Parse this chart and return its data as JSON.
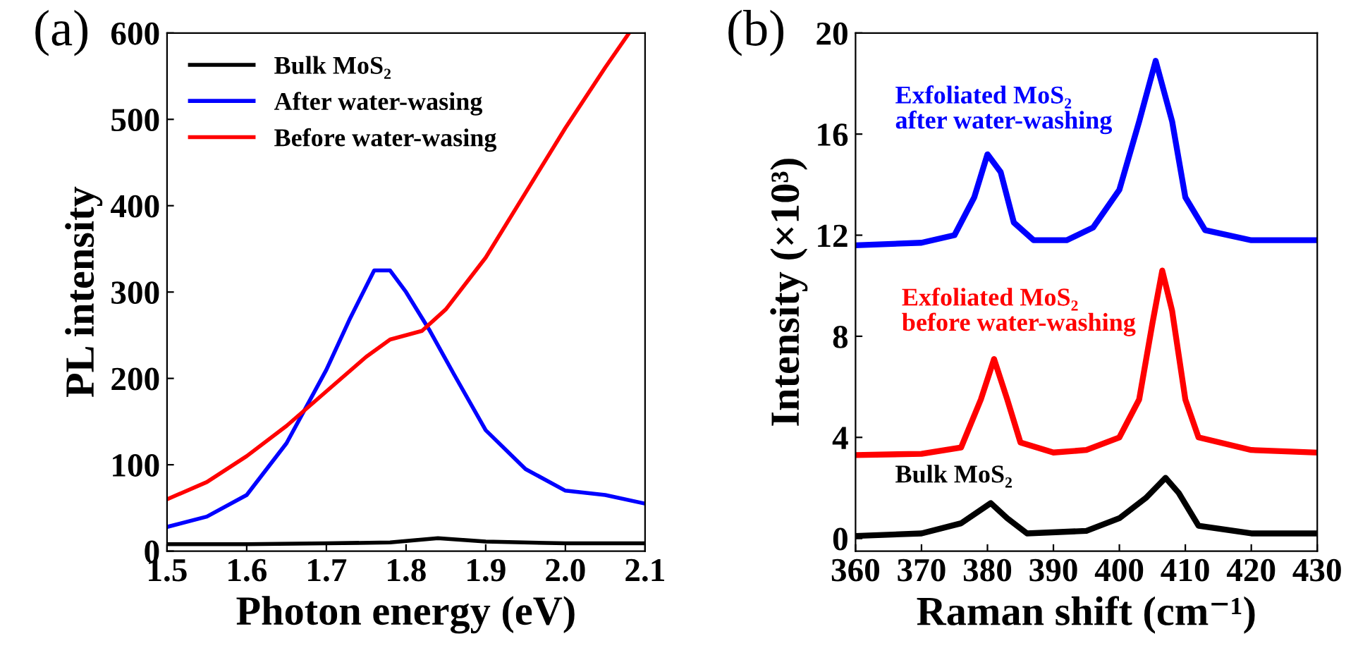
{
  "chart_data": [
    {
      "type": "line",
      "xlabel": "Photon energy (eV)",
      "ylabel": "PL intensity",
      "annotations": [
        "(a)"
      ],
      "xlim": [
        1.5,
        2.1
      ],
      "ylim": [
        0,
        600
      ],
      "xticks": [
        1.5,
        1.6,
        1.7,
        1.8,
        1.9,
        {
          "value": 2.0,
          "label": "2.0"
        },
        2.1
      ],
      "yticks": [
        0,
        100,
        200,
        300,
        400,
        500,
        600
      ],
      "legend": "top left",
      "grid": false,
      "series": [
        {
          "name": "Bulk MoS₂",
          "color": "#000000",
          "x": [
            1.5,
            1.6,
            1.7,
            1.78,
            1.84,
            1.9,
            2.0,
            2.1
          ],
          "values": [
            8,
            8,
            9,
            10,
            15,
            11,
            9,
            9
          ]
        },
        {
          "name": "After water-wasing",
          "color": "#0000ff",
          "x": [
            1.5,
            1.55,
            1.6,
            1.65,
            1.7,
            1.73,
            1.76,
            1.78,
            1.8,
            1.83,
            1.86,
            1.9,
            1.95,
            2.0,
            2.05,
            2.1
          ],
          "values": [
            28,
            40,
            65,
            125,
            210,
            270,
            325,
            325,
            300,
            255,
            205,
            140,
            95,
            70,
            65,
            55
          ]
        },
        {
          "name": "Before water-wasing",
          "color": "#ff0000",
          "x": [
            1.5,
            1.55,
            1.6,
            1.65,
            1.7,
            1.75,
            1.78,
            1.82,
            1.85,
            1.9,
            1.95,
            2.0,
            2.05,
            2.08
          ],
          "values": [
            60,
            80,
            110,
            145,
            185,
            225,
            245,
            255,
            280,
            340,
            415,
            490,
            560,
            600
          ]
        }
      ]
    },
    {
      "type": "line",
      "xlabel": "Raman shift (cm⁻¹)",
      "ylabel": "Intensity (×10³)",
      "annotations": [
        "(b)"
      ],
      "xlim": [
        360,
        430
      ],
      "ylim": [
        -0.5,
        20
      ],
      "xticks": [
        360,
        370,
        380,
        390,
        400,
        410,
        420,
        430
      ],
      "yticks": [
        0,
        4,
        8,
        12,
        16,
        20
      ],
      "legend": false,
      "grid": false,
      "series": [
        {
          "name": "Bulk MoS₂",
          "color": "#000000",
          "x": [
            360,
            370,
            376,
            380.5,
            383,
            386,
            395,
            400,
            404,
            407,
            409,
            412,
            420,
            430
          ],
          "values": [
            0.1,
            0.2,
            0.6,
            1.4,
            0.8,
            0.2,
            0.3,
            0.8,
            1.6,
            2.4,
            1.8,
            0.5,
            0.2,
            0.2
          ]
        },
        {
          "name": "Exfoliated MoS₂\nbefore water-washing",
          "color": "#ff0000",
          "x": [
            360,
            370,
            376,
            379,
            381,
            383,
            385,
            390,
            395,
            400,
            403,
            405,
            406.5,
            408,
            410,
            412,
            420,
            430
          ],
          "values": [
            3.3,
            3.35,
            3.6,
            5.5,
            7.1,
            5.5,
            3.8,
            3.4,
            3.5,
            4.0,
            5.5,
            8.5,
            10.6,
            9.0,
            5.5,
            4.0,
            3.5,
            3.4
          ]
        },
        {
          "name": "Exfoliated MoS₂\nafter water-washing",
          "color": "#0000ff",
          "x": [
            360,
            370,
            375,
            378,
            380,
            382,
            384,
            387,
            392,
            396,
            400,
            403,
            405.5,
            408,
            410,
            413,
            420,
            430
          ],
          "values": [
            11.6,
            11.7,
            12.0,
            13.5,
            15.2,
            14.5,
            12.5,
            11.8,
            11.8,
            12.3,
            13.8,
            16.5,
            18.9,
            16.5,
            13.5,
            12.2,
            11.8,
            11.8
          ]
        }
      ]
    }
  ]
}
